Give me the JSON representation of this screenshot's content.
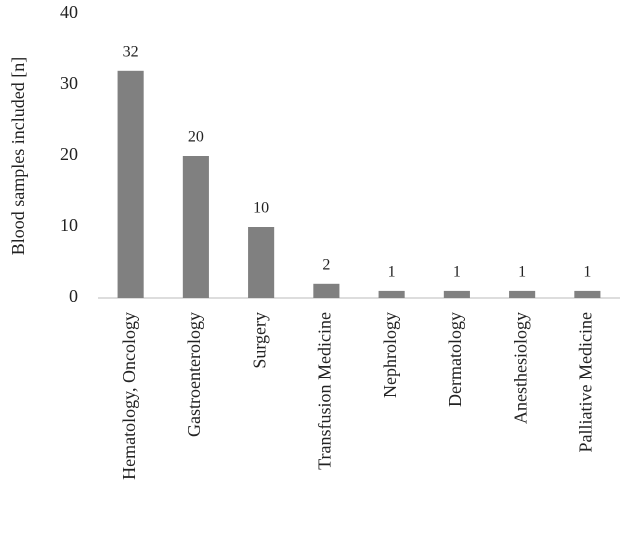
{
  "chart_data": {
    "type": "bar",
    "y_label": "Blood samples included [n]",
    "categories": [
      "Hematology, Oncology",
      "Gastroenterology",
      "Surgery",
      "Transfusion Medicine",
      "Nephrology",
      "Dermatology",
      "Anesthesiology",
      "Palliative Medicine"
    ],
    "values": [
      32,
      20,
      10,
      2,
      1,
      1,
      1,
      1
    ],
    "color": "#808080",
    "ylim": [
      0,
      40
    ],
    "yticks": [
      0,
      10,
      20,
      30,
      40
    ],
    "grid": false,
    "data_labels": true
  }
}
